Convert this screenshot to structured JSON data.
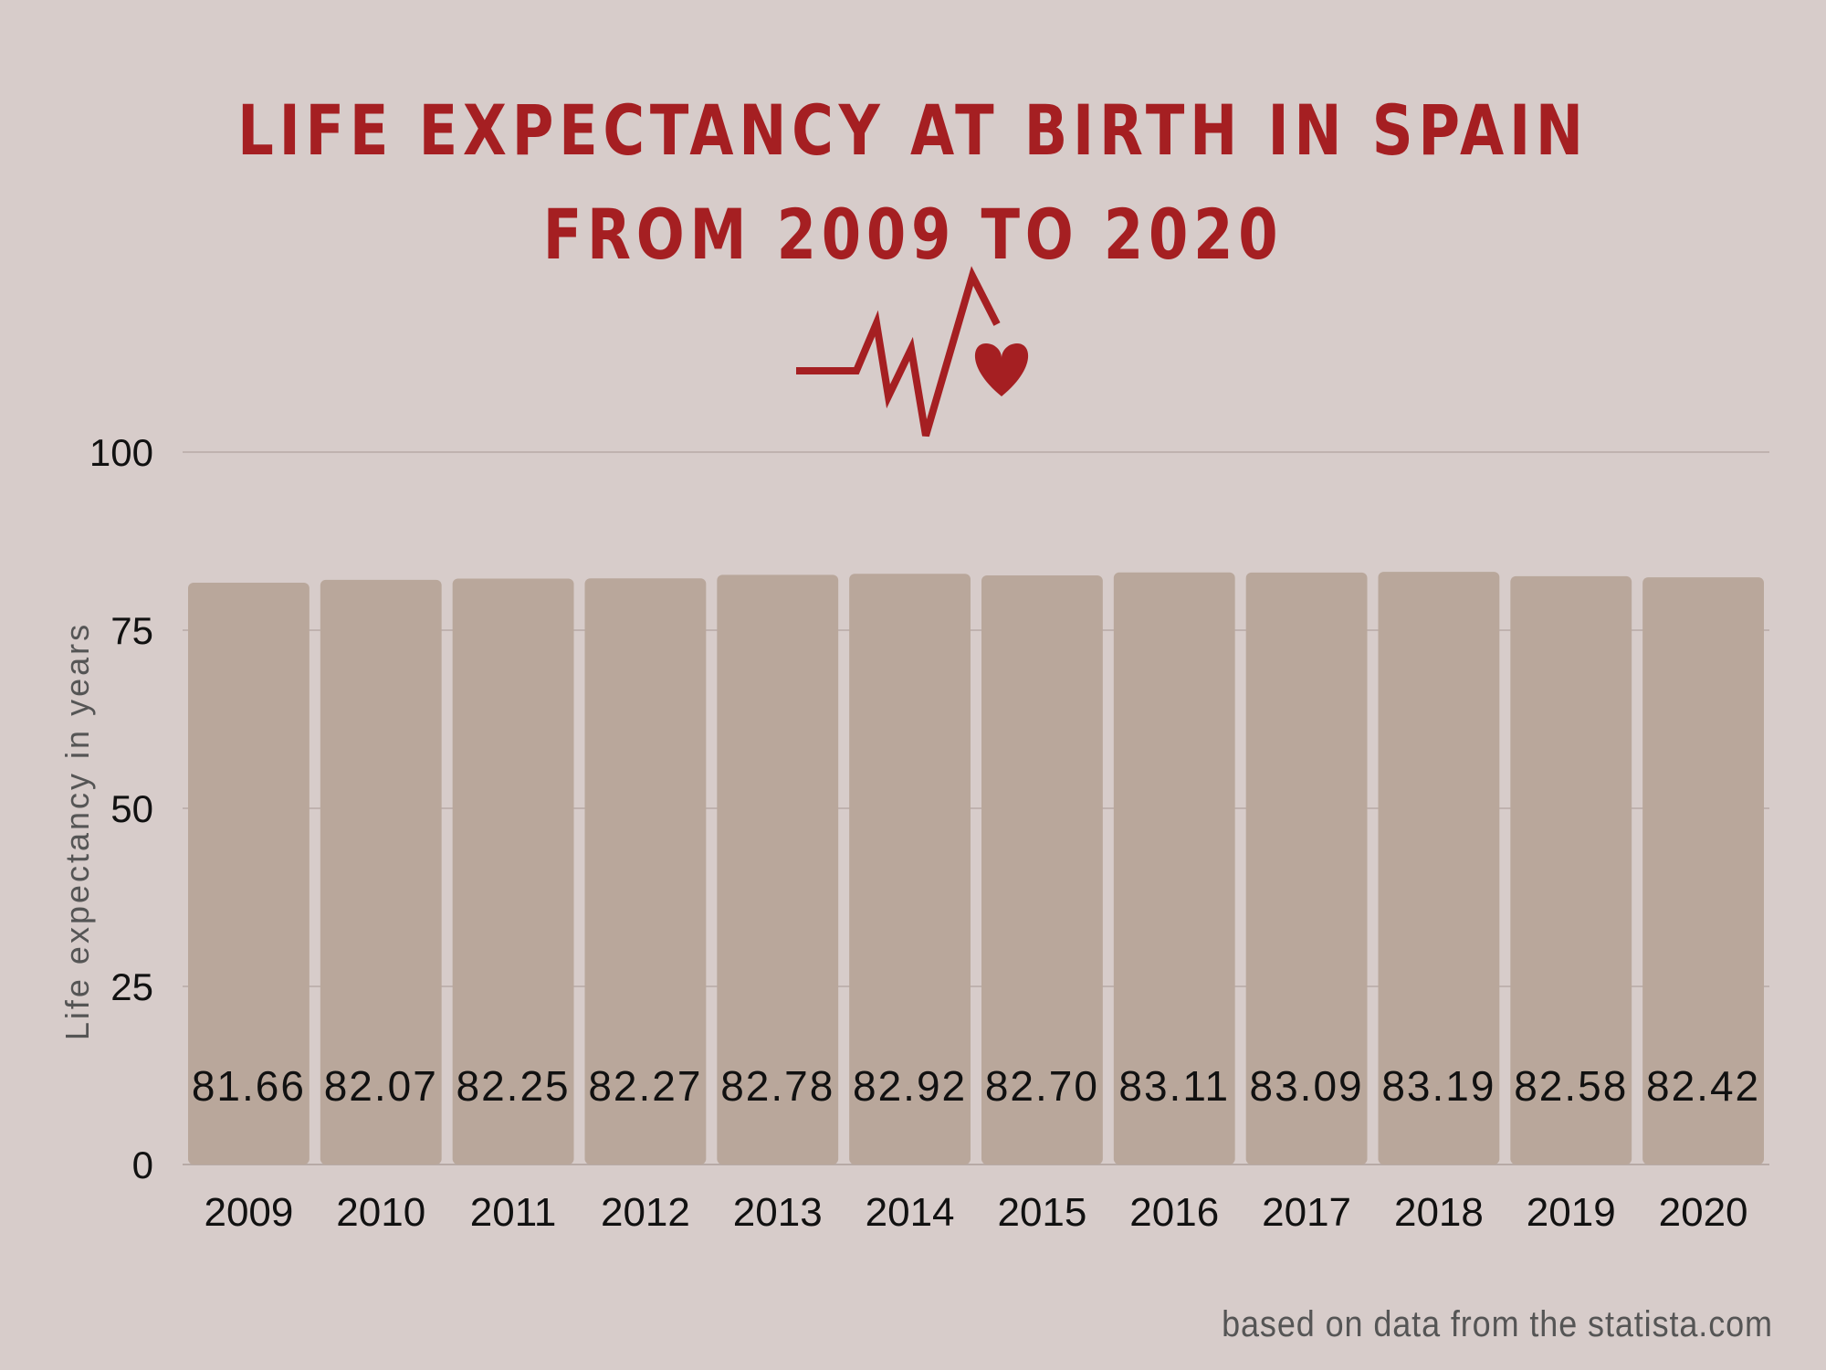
{
  "colors": {
    "background": "#d7ccca",
    "bar": "#b9a79b",
    "accent": "#a51f22",
    "grid": "#b7aaa6"
  },
  "decoration": {
    "icon": "heartbeat-heart-icon"
  },
  "chart_data": {
    "type": "bar",
    "title_lines": [
      "LIFE EXPECTANCY AT BIRTH IN SPAIN",
      "FROM 2009 TO 2020"
    ],
    "categories": [
      "2009",
      "2010",
      "2011",
      "2012",
      "2013",
      "2014",
      "2015",
      "2016",
      "2017",
      "2018",
      "2019",
      "2020"
    ],
    "values": [
      81.66,
      82.07,
      82.25,
      82.27,
      82.78,
      82.92,
      82.7,
      83.11,
      83.09,
      83.19,
      82.58,
      82.42
    ],
    "value_labels": [
      "81.66",
      "82.07",
      "82.25",
      "82.27",
      "82.78",
      "82.92",
      "82.70",
      "83.11",
      "83.09",
      "83.19",
      "82.58",
      "82.42"
    ],
    "xlabel": "",
    "ylabel": "Life expectancy in years",
    "ylim": [
      0,
      100
    ],
    "yticks": [
      0,
      25,
      50,
      75,
      100
    ],
    "grid": true,
    "legend": "none",
    "source": "based on data from the statista.com"
  }
}
